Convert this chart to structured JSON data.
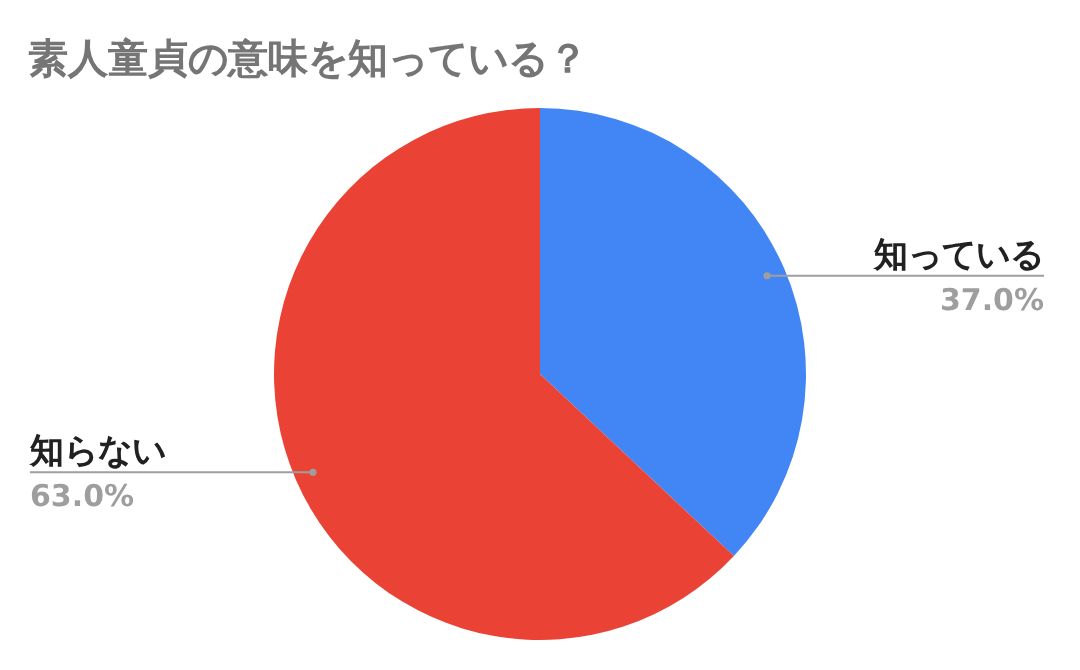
{
  "chart_data": {
    "type": "pie",
    "title": "素人童貞の意味を知っている？",
    "categories": [
      "知っている",
      "知らない"
    ],
    "values": [
      37.0,
      63.0
    ],
    "colors": [
      "#4285f4",
      "#ea4335"
    ],
    "value_labels": [
      "37.0%",
      "63.0%"
    ],
    "legend": false
  }
}
